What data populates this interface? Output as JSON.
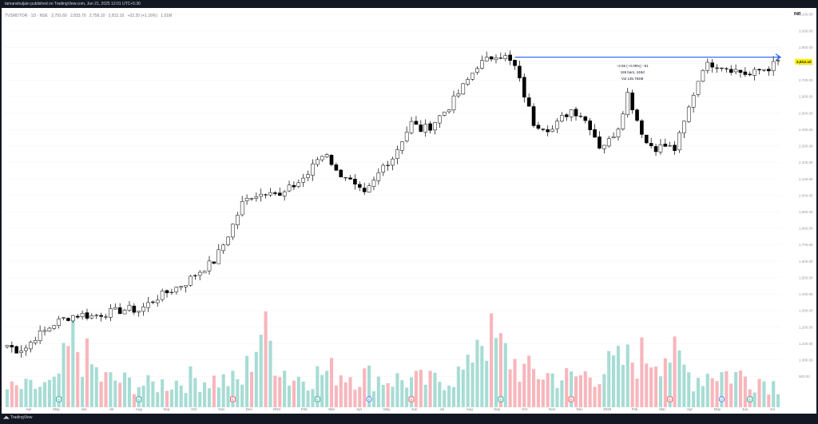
{
  "header": {
    "publisher": "tamanshuljain published on TradingView.com, Jun 21, 2025 12:01 UTC+5:30"
  },
  "legend": {
    "symbol": "TVSMOTOR · 1D · NSE",
    "open": "2,791.60",
    "high": "2,833.70",
    "low": "2,756.10",
    "close": "2,812.10",
    "change": "+32.20 (+1.16%)",
    "volume": "1.01M"
  },
  "currency": "INR",
  "footer": {
    "brand": "TradingView"
  },
  "measure": {
    "line1": "−2.55 (−0.09%) −51",
    "line2": "169 bars, 248d",
    "line3": "Vol 135.784M"
  },
  "colors": {
    "up": "#089981",
    "down": "#f23645",
    "candle": "#000000",
    "vol_up": "#a7dcd4",
    "vol_down": "#f7b6bc",
    "arrow": "#2962ff",
    "price_label": "#fff200"
  },
  "chart_data": {
    "type": "candlestick",
    "y_axis": {
      "min": 800,
      "max": 3100,
      "ticks": [
        "3,100.00",
        "3,000.00",
        "2,900.00",
        "2,800.00",
        "2,700.00",
        "2,600.00",
        "2,500.00",
        "2,400.00",
        "2,300.00",
        "2,200.00",
        "2,100.00",
        "2,000.00",
        "1,900.00",
        "1,800.00",
        "1,700.00",
        "1,600.00",
        "1,500.00",
        "1,400.00",
        "1,300.00",
        "1,200.00",
        "1,100.00",
        "1,000.00",
        "900.00"
      ]
    },
    "x_axis_labels": [
      "Apr",
      "May",
      "Jun",
      "Jul",
      "Aug",
      "Sep",
      "Oct",
      "Nov",
      "Dec",
      "2024",
      "Feb",
      "Mar",
      "Apr",
      "May",
      "Jun",
      "Jul",
      "Aug",
      "Sep",
      "Oct",
      "Nov",
      "Dec",
      "2025",
      "Feb",
      "Mar",
      "Apr",
      "May",
      "Jun",
      "Jul"
    ],
    "last_price": "2,812.10",
    "price_path": [
      [
        0,
        1090
      ],
      [
        2,
        1060
      ],
      [
        4,
        1075
      ],
      [
        6,
        1140
      ],
      [
        8,
        1175
      ],
      [
        10,
        1220
      ],
      [
        12,
        1250
      ],
      [
        14,
        1270
      ],
      [
        16,
        1275
      ],
      [
        18,
        1265
      ],
      [
        20,
        1280
      ],
      [
        22,
        1290
      ],
      [
        24,
        1300
      ],
      [
        26,
        1310
      ],
      [
        28,
        1300
      ],
      [
        30,
        1340
      ],
      [
        32,
        1380
      ],
      [
        34,
        1410
      ],
      [
        36,
        1440
      ],
      [
        38,
        1470
      ],
      [
        40,
        1520
      ],
      [
        42,
        1560
      ],
      [
        44,
        1600
      ],
      [
        46,
        1700
      ],
      [
        48,
        1820
      ],
      [
        50,
        1950
      ],
      [
        52,
        2000
      ],
      [
        54,
        2010
      ],
      [
        56,
        2040
      ],
      [
        58,
        1990
      ],
      [
        60,
        2040
      ],
      [
        62,
        2080
      ],
      [
        64,
        2130
      ],
      [
        66,
        2220
      ],
      [
        68,
        2260
      ],
      [
        70,
        2140
      ],
      [
        72,
        2120
      ],
      [
        74,
        2050
      ],
      [
        76,
        2000
      ],
      [
        78,
        2080
      ],
      [
        80,
        2180
      ],
      [
        82,
        2230
      ],
      [
        84,
        2340
      ],
      [
        86,
        2440
      ],
      [
        88,
        2400
      ],
      [
        90,
        2420
      ],
      [
        92,
        2480
      ],
      [
        94,
        2540
      ],
      [
        96,
        2620
      ],
      [
        98,
        2700
      ],
      [
        100,
        2790
      ],
      [
        102,
        2820
      ],
      [
        104,
        2860
      ],
      [
        106,
        2840
      ],
      [
        108,
        2780
      ],
      [
        110,
        2610
      ],
      [
        112,
        2440
      ],
      [
        114,
        2420
      ],
      [
        116,
        2400
      ],
      [
        118,
        2470
      ],
      [
        120,
        2520
      ],
      [
        122,
        2490
      ],
      [
        124,
        2420
      ],
      [
        126,
        2300
      ],
      [
        128,
        2330
      ],
      [
        130,
        2420
      ],
      [
        132,
        2620
      ],
      [
        134,
        2460
      ],
      [
        136,
        2320
      ],
      [
        138,
        2290
      ],
      [
        140,
        2300
      ],
      [
        142,
        2280
      ],
      [
        144,
        2440
      ],
      [
        146,
        2620
      ],
      [
        148,
        2780
      ],
      [
        150,
        2800
      ],
      [
        152,
        2790
      ],
      [
        154,
        2770
      ],
      [
        156,
        2750
      ],
      [
        158,
        2730
      ],
      [
        160,
        2760
      ],
      [
        162,
        2775
      ],
      [
        164,
        2812
      ]
    ],
    "volume_scale_max": 12,
    "volume_path": [
      [
        0,
        2.5
      ],
      [
        10,
        3
      ],
      [
        14,
        9
      ],
      [
        20,
        4
      ],
      [
        30,
        3
      ],
      [
        40,
        4
      ],
      [
        50,
        3.5
      ],
      [
        54,
        11
      ],
      [
        60,
        4
      ],
      [
        70,
        5
      ],
      [
        80,
        4
      ],
      [
        90,
        3.5
      ],
      [
        98,
        5
      ],
      [
        100,
        11
      ],
      [
        110,
        5
      ],
      [
        120,
        4
      ],
      [
        126,
        5
      ],
      [
        130,
        6
      ],
      [
        140,
        8
      ],
      [
        146,
        4
      ],
      [
        150,
        5
      ],
      [
        160,
        4
      ],
      [
        164,
        3
      ]
    ],
    "markers": [
      {
        "label": "E",
        "type": "earnings"
      },
      {
        "label": "E",
        "type": "earnings"
      },
      {
        "label": "E",
        "type": "earnings-red"
      },
      {
        "label": "E",
        "type": "earnings"
      },
      {
        "label": "D",
        "type": "dividend"
      },
      {
        "label": "E",
        "type": "earnings-red"
      },
      {
        "label": "E",
        "type": "earnings"
      },
      {
        "label": "E",
        "type": "earnings-red"
      },
      {
        "label": "E",
        "type": "earnings-red"
      },
      {
        "label": "D",
        "type": "dividend"
      },
      {
        "label": "E",
        "type": "earnings"
      }
    ],
    "marker_bars": [
      11,
      28,
      48,
      66,
      77,
      86,
      105,
      120,
      141,
      152,
      158
    ],
    "resistance_level": 2840,
    "total_bars": 165
  }
}
